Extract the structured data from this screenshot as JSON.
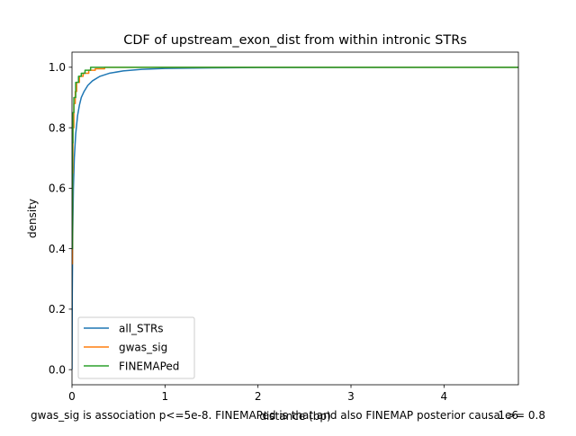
{
  "chart_data": {
    "type": "line",
    "title": "CDF of upstream_exon_dist from within intronic STRs",
    "xlabel": "distance (bp)",
    "ylabel": "density",
    "x_offset_label": "1e6",
    "caption": "gwas_sig is association p<=5e-8. FINEMAPed is that and also FINEMAP posterior causal >= 0.8",
    "xlim": [
      0,
      4.8
    ],
    "ylim": [
      -0.05,
      1.05
    ],
    "xticks": [
      0,
      1,
      2,
      3,
      4
    ],
    "xtick_labels": [
      "0",
      "1",
      "2",
      "3",
      "4"
    ],
    "yticks": [
      0.0,
      0.2,
      0.4,
      0.6,
      0.8,
      1.0
    ],
    "ytick_labels": [
      "0.0",
      "0.2",
      "0.4",
      "0.6",
      "0.8",
      "1.0"
    ],
    "grid": false,
    "legend_position": "lower-left",
    "series": [
      {
        "name": "all_STRs",
        "color": "#1f77b4",
        "step": false,
        "points": [
          [
            0,
            0.0
          ],
          [
            0.003,
            0.25
          ],
          [
            0.008,
            0.45
          ],
          [
            0.015,
            0.6
          ],
          [
            0.025,
            0.7
          ],
          [
            0.04,
            0.78
          ],
          [
            0.06,
            0.84
          ],
          [
            0.08,
            0.875
          ],
          [
            0.1,
            0.9
          ],
          [
            0.13,
            0.92
          ],
          [
            0.17,
            0.94
          ],
          [
            0.22,
            0.955
          ],
          [
            0.3,
            0.97
          ],
          [
            0.4,
            0.98
          ],
          [
            0.55,
            0.988
          ],
          [
            0.75,
            0.993
          ],
          [
            1.0,
            0.996
          ],
          [
            1.5,
            0.998
          ],
          [
            2.0,
            0.999
          ],
          [
            3.0,
            0.9995
          ],
          [
            4.8,
            1.0
          ]
        ]
      },
      {
        "name": "gwas_sig",
        "color": "#ff7f0e",
        "step": true,
        "points": [
          [
            0,
            0.35
          ],
          [
            0.005,
            0.65
          ],
          [
            0.01,
            0.8
          ],
          [
            0.02,
            0.88
          ],
          [
            0.035,
            0.92
          ],
          [
            0.05,
            0.95
          ],
          [
            0.08,
            0.97
          ],
          [
            0.12,
            0.98
          ],
          [
            0.18,
            0.99
          ],
          [
            0.25,
            0.995
          ],
          [
            0.35,
            1.0
          ],
          [
            4.8,
            1.0
          ]
        ]
      },
      {
        "name": "FINEMAPed",
        "color": "#2ca02c",
        "step": true,
        "points": [
          [
            0,
            0.4
          ],
          [
            0.005,
            0.75
          ],
          [
            0.01,
            0.85
          ],
          [
            0.02,
            0.9
          ],
          [
            0.04,
            0.95
          ],
          [
            0.07,
            0.97
          ],
          [
            0.1,
            0.98
          ],
          [
            0.14,
            0.99
          ],
          [
            0.2,
            1.0
          ],
          [
            4.8,
            1.0
          ]
        ]
      }
    ]
  }
}
